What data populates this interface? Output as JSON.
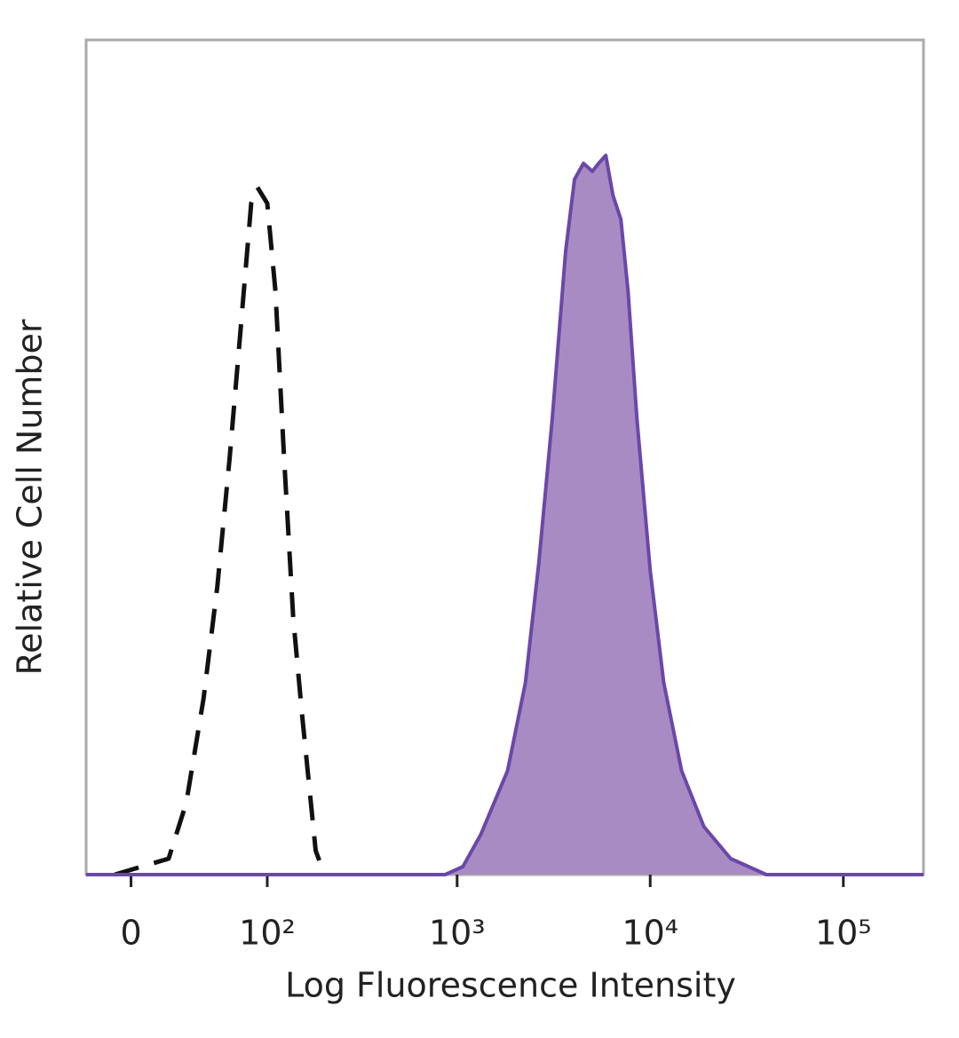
{
  "chart_data": {
    "type": "histogram-overlay",
    "x_label": "Log Fluorescence Intensity",
    "y_label": "Relative Cell Number",
    "x_scale": "biexponential",
    "xlim": [
      -23,
      260000
    ],
    "ylim": [
      0,
      100
    ],
    "xticks": [
      0,
      {
        "value": 100,
        "label": "10²"
      },
      {
        "value": 1000,
        "label": "10³"
      },
      {
        "value": 10000,
        "label": "10⁴"
      },
      {
        "value": 100000,
        "label": "10⁵"
      }
    ],
    "series": [
      {
        "color": "#111111",
        "dashed": true,
        "x": [
          -8,
          19,
          29,
          40,
          50,
          60,
          70,
          81,
          88,
          100,
          111,
          124,
          139,
          155,
          183,
          204
        ],
        "values": [
          0,
          2,
          9,
          22,
          36,
          52,
          68,
          84,
          86,
          84,
          73,
          52,
          32,
          20,
          3,
          0
        ]
      },
      {
        "color": "#6a48a8",
        "fill": "#a98bc4",
        "x": [
          -23,
          867,
          1072,
          1326,
          1825,
          2259,
          2649,
          3108,
          3647,
          4055,
          4512,
          5016,
          5402,
          5886,
          6412,
          7050,
          7677,
          8538,
          10010,
          11750,
          14540,
          18960,
          26100,
          39910,
          260000
        ],
        "values": [
          0,
          0,
          1,
          5,
          13,
          24,
          39,
          57,
          78,
          87,
          89,
          88,
          89,
          90,
          85,
          82,
          73,
          57,
          38,
          24,
          13,
          6,
          2,
          0,
          0
        ]
      }
    ]
  }
}
